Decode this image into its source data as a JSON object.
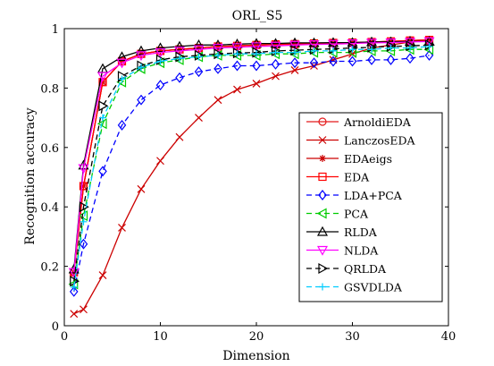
{
  "chart_data": {
    "type": "line",
    "title": "ORL_S5",
    "xlabel": "Dimension",
    "ylabel": "Recognition accuracy",
    "xlim": [
      0,
      40
    ],
    "ylim": [
      0,
      1
    ],
    "xticks": [
      0,
      10,
      20,
      30,
      40
    ],
    "yticks": [
      0,
      0.2,
      0.4,
      0.6,
      0.8,
      1
    ],
    "xtick_labels": [
      "0",
      "10",
      "20",
      "30",
      "40"
    ],
    "ytick_labels": [
      "0",
      "0.2",
      "0.4",
      "0.6",
      "0.8",
      "1"
    ],
    "grid": false,
    "legend_position": "right",
    "x": [
      1,
      2,
      4,
      6,
      8,
      10,
      12,
      14,
      16,
      18,
      20,
      22,
      24,
      26,
      28,
      30,
      32,
      34,
      36,
      38
    ],
    "series": [
      {
        "name": "ArnoldiEDA",
        "color": "#e41a1c",
        "marker": "circle",
        "dash": "solid",
        "values": [
          0.18,
          0.47,
          0.82,
          0.89,
          0.915,
          0.925,
          0.93,
          0.935,
          0.94,
          0.942,
          0.945,
          0.947,
          0.948,
          0.95,
          0.952,
          0.953,
          0.955,
          0.957,
          0.96,
          0.962
        ]
      },
      {
        "name": "LanczosEDA",
        "color": "#cc0000",
        "marker": "x",
        "dash": "solid",
        "values": [
          0.04,
          0.055,
          0.17,
          0.33,
          0.46,
          0.555,
          0.635,
          0.7,
          0.76,
          0.795,
          0.815,
          0.84,
          0.86,
          0.875,
          0.895,
          0.915,
          0.935,
          0.945,
          0.955,
          0.96
        ]
      },
      {
        "name": "EDAeigs",
        "color": "#cc0000",
        "marker": "star",
        "dash": "solid",
        "values": [
          0.18,
          0.47,
          0.82,
          0.89,
          0.915,
          0.925,
          0.93,
          0.935,
          0.94,
          0.942,
          0.945,
          0.947,
          0.948,
          0.95,
          0.952,
          0.953,
          0.955,
          0.957,
          0.96,
          0.962
        ]
      },
      {
        "name": "EDA",
        "color": "#ff0000",
        "marker": "square",
        "dash": "solid",
        "values": [
          0.18,
          0.47,
          0.82,
          0.89,
          0.915,
          0.925,
          0.93,
          0.935,
          0.94,
          0.942,
          0.945,
          0.947,
          0.948,
          0.95,
          0.952,
          0.953,
          0.955,
          0.957,
          0.96,
          0.962
        ]
      },
      {
        "name": "LDA+PCA",
        "color": "#0000ff",
        "marker": "diamond",
        "dash": "dashed",
        "values": [
          0.115,
          0.275,
          0.52,
          0.675,
          0.76,
          0.81,
          0.835,
          0.855,
          0.865,
          0.875,
          0.875,
          0.88,
          0.885,
          0.885,
          0.89,
          0.89,
          0.895,
          0.895,
          0.9,
          0.91
        ]
      },
      {
        "name": "PCA",
        "color": "#00cc00",
        "marker": "triangle-left",
        "dash": "dashed",
        "values": [
          0.14,
          0.37,
          0.68,
          0.82,
          0.865,
          0.885,
          0.895,
          0.905,
          0.91,
          0.91,
          0.91,
          0.915,
          0.915,
          0.92,
          0.92,
          0.92,
          0.925,
          0.925,
          0.93,
          0.93
        ]
      },
      {
        "name": "RLDA",
        "color": "#000000",
        "marker": "triangle-up",
        "dash": "solid",
        "values": [
          0.19,
          0.54,
          0.865,
          0.905,
          0.925,
          0.935,
          0.94,
          0.945,
          0.945,
          0.948,
          0.95,
          0.95,
          0.952,
          0.952,
          0.953,
          0.953,
          0.955,
          0.955,
          0.957,
          0.957
        ]
      },
      {
        "name": "NLDA",
        "color": "#ff00ff",
        "marker": "triangle-down",
        "dash": "solid",
        "values": [
          0.18,
          0.53,
          0.84,
          0.885,
          0.91,
          0.92,
          0.925,
          0.93,
          0.935,
          0.937,
          0.94,
          0.942,
          0.945,
          0.947,
          0.948,
          0.95,
          0.952,
          0.953,
          0.955,
          0.957
        ]
      },
      {
        "name": "QRLDA",
        "color": "#000000",
        "marker": "triangle-right",
        "dash": "dashed",
        "values": [
          0.15,
          0.4,
          0.74,
          0.84,
          0.875,
          0.895,
          0.905,
          0.91,
          0.915,
          0.918,
          0.92,
          0.925,
          0.927,
          0.93,
          0.932,
          0.935,
          0.937,
          0.94,
          0.942,
          0.945
        ]
      },
      {
        "name": "GSVDLDA",
        "color": "#00ccff",
        "marker": "plus",
        "dash": "dashed",
        "values": [
          0.13,
          0.35,
          0.7,
          0.83,
          0.87,
          0.89,
          0.9,
          0.905,
          0.91,
          0.915,
          0.915,
          0.92,
          0.92,
          0.925,
          0.925,
          0.93,
          0.93,
          0.935,
          0.935,
          0.94
        ]
      }
    ]
  }
}
